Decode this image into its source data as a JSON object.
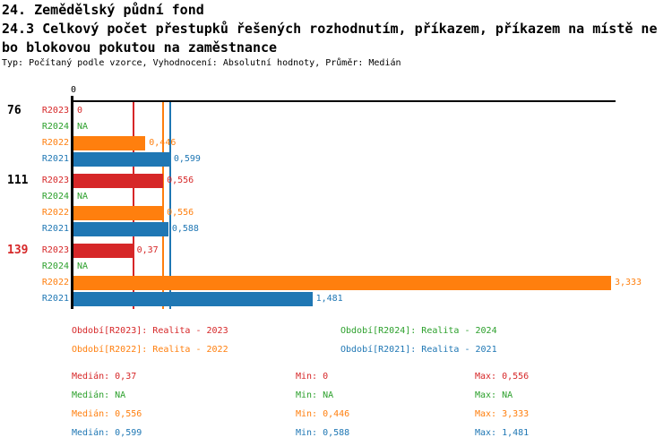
{
  "title": {
    "line1": "24. Zemědělský půdní fond",
    "line2": "24.3 Celkový počet přestupků řešených rozhodnutím, příkazem, příkazem na místě ne",
    "line3": "bo blokovou pokutou na zaměstnance",
    "meta": "Typ: Počítaný podle vzorce, Vyhodnocení: Absolutní hodnoty, Průměr: Medián"
  },
  "chart_data": {
    "type": "bar",
    "orientation": "horizontal",
    "x_axis": {
      "zero_tick_label": "0",
      "xlim": [
        0,
        3.36
      ],
      "grid": false
    },
    "series": {
      "R2023": {
        "label": "R2023",
        "color": "#d62728"
      },
      "R2024": {
        "label": "R2024",
        "color": "#2ca02c"
      },
      "R2022": {
        "label": "R2022",
        "color": "#ff7f0e"
      },
      "R2021": {
        "label": "R2021",
        "color": "#1f77b4"
      }
    },
    "row_order": [
      "R2023",
      "R2024",
      "R2022",
      "R2021"
    ],
    "groups": [
      {
        "label": "76",
        "label_color": "#000000",
        "values": {
          "R2023": 0,
          "R2024": null,
          "R2022": 0.446,
          "R2021": 0.599
        },
        "value_labels": {
          "R2023": "0",
          "R2024": "NA",
          "R2022": "0,446",
          "R2021": "0,599"
        }
      },
      {
        "label": "111",
        "label_color": "#000000",
        "values": {
          "R2023": 0.556,
          "R2024": null,
          "R2022": 0.556,
          "R2021": 0.588
        },
        "value_labels": {
          "R2023": "0,556",
          "R2024": "NA",
          "R2022": "0,556",
          "R2021": "0,588"
        }
      },
      {
        "label": "139",
        "label_color": "#d62728",
        "values": {
          "R2023": 0.37,
          "R2024": null,
          "R2022": 3.333,
          "R2021": 1.481
        },
        "value_labels": {
          "R2023": "0,37",
          "R2024": "NA",
          "R2022": "3,333",
          "R2021": "1,481"
        }
      }
    ],
    "median_lines": [
      {
        "series": "R2023",
        "value": 0.37
      },
      {
        "series": "R2022",
        "value": 0.556
      },
      {
        "series": "R2021",
        "value": 0.599
      }
    ]
  },
  "legend": [
    {
      "series": "R2023",
      "text": "Období[R2023]: Realita - 2023"
    },
    {
      "series": "R2024",
      "text": "Období[R2024]: Realita - 2024"
    },
    {
      "series": "R2022",
      "text": "Období[R2022]: Realita - 2022"
    },
    {
      "series": "R2021",
      "text": "Období[R2021]: Realita - 2021"
    }
  ],
  "stats": [
    {
      "series": "R2023",
      "median": "Medián: 0,37",
      "min": "Min: 0",
      "max": "Max: 0,556"
    },
    {
      "series": "R2024",
      "median": "Medián: NA",
      "min": "Min: NA",
      "max": "Max: NA"
    },
    {
      "series": "R2022",
      "median": "Medián: 0,556",
      "min": "Min: 0,446",
      "max": "Max: 3,333"
    },
    {
      "series": "R2021",
      "median": "Medián: 0,599",
      "min": "Min: 0,588",
      "max": "Max: 1,481"
    }
  ]
}
